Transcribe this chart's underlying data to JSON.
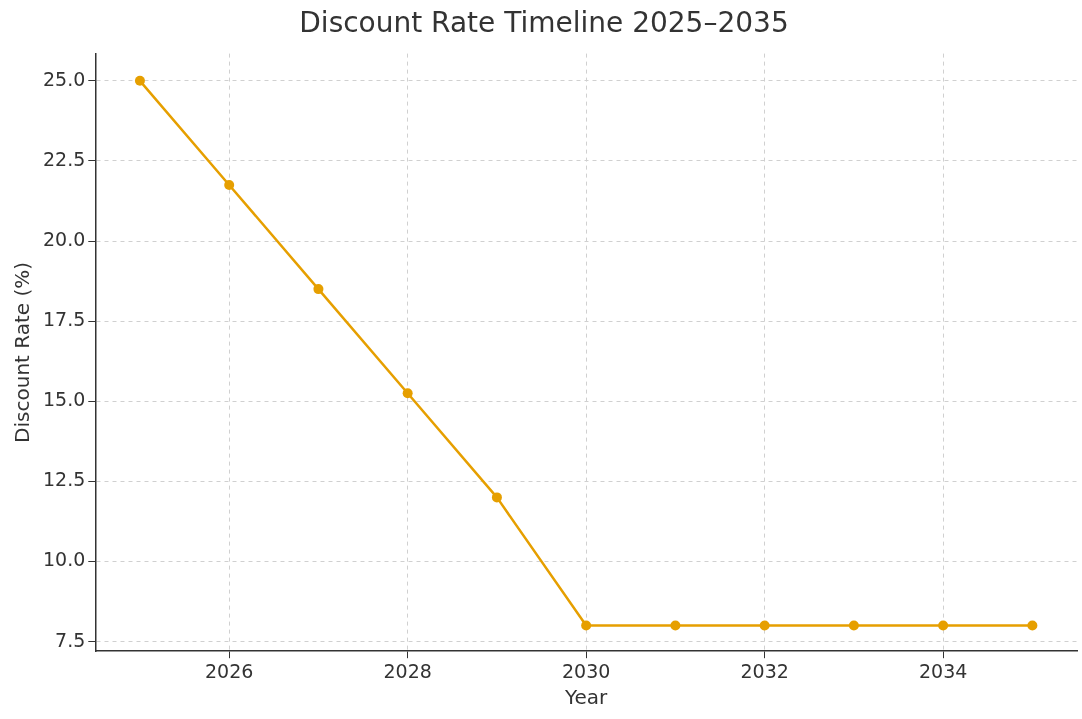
{
  "chart_data": {
    "type": "line",
    "title": "Discount Rate Timeline 2025–2035",
    "xlabel": "Year",
    "ylabel": "Discount Rate (%)",
    "x": [
      2025,
      2026,
      2027,
      2028,
      2029,
      2030,
      2031,
      2032,
      2033,
      2034,
      2035
    ],
    "series": [
      {
        "color": "#e69f00",
        "values": [
          25,
          21.75,
          18.5,
          15.25,
          12,
          8,
          8,
          8,
          8,
          8,
          8
        ]
      }
    ],
    "xlim": [
      2024.5,
      2035.5
    ],
    "xticks": [
      2026,
      2028,
      2030,
      2032,
      2034
    ],
    "ylim": [
      7.2,
      25.85
    ],
    "yticks": [
      7.5,
      {
        "value": 10,
        "label": "10.0"
      },
      12.5,
      {
        "value": 15,
        "label": "15.0"
      },
      17.5,
      {
        "value": 20,
        "label": "20.0"
      },
      22.5,
      {
        "value": 25,
        "label": "25.0"
      }
    ],
    "grid": true,
    "marker": "circle",
    "line_style": "solid"
  }
}
